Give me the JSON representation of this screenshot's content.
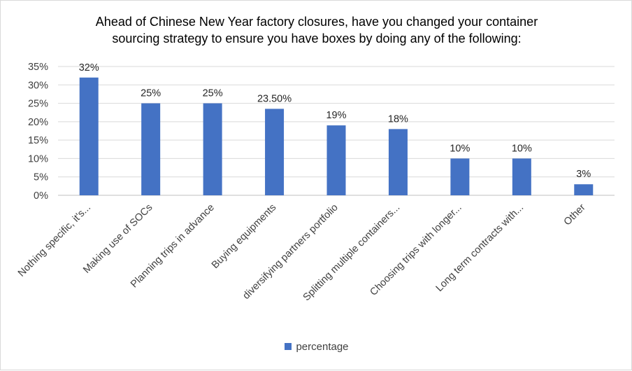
{
  "chart_data": {
    "type": "bar",
    "title_lines": [
      "Ahead of Chinese New Year factory closures, have you changed your container",
      "sourcing strategy to ensure you have boxes by doing any of the following:"
    ],
    "categories": [
      "Nothing specific, it's...",
      "Making use of SOCs",
      "Planning trips in advance",
      "Buying equipments",
      "diversifying partners portfolio",
      "Splitting multiple containers...",
      "Choosing trips with longer...",
      "Long term contracts with...",
      "Other"
    ],
    "series": [
      {
        "name": "percentage",
        "values": [
          32,
          25,
          25,
          23.5,
          19,
          18,
          10,
          10,
          3
        ],
        "labels": [
          "32%",
          "25%",
          "25%",
          "23.50%",
          "19%",
          "18%",
          "10%",
          "10%",
          "3%"
        ],
        "color": "#4472C4"
      }
    ],
    "y_ticks": [
      "0%",
      "5%",
      "10%",
      "15%",
      "20%",
      "25%",
      "30%",
      "35%"
    ],
    "ylim": [
      0,
      35
    ],
    "grid": true,
    "legend_position": "bottom"
  }
}
